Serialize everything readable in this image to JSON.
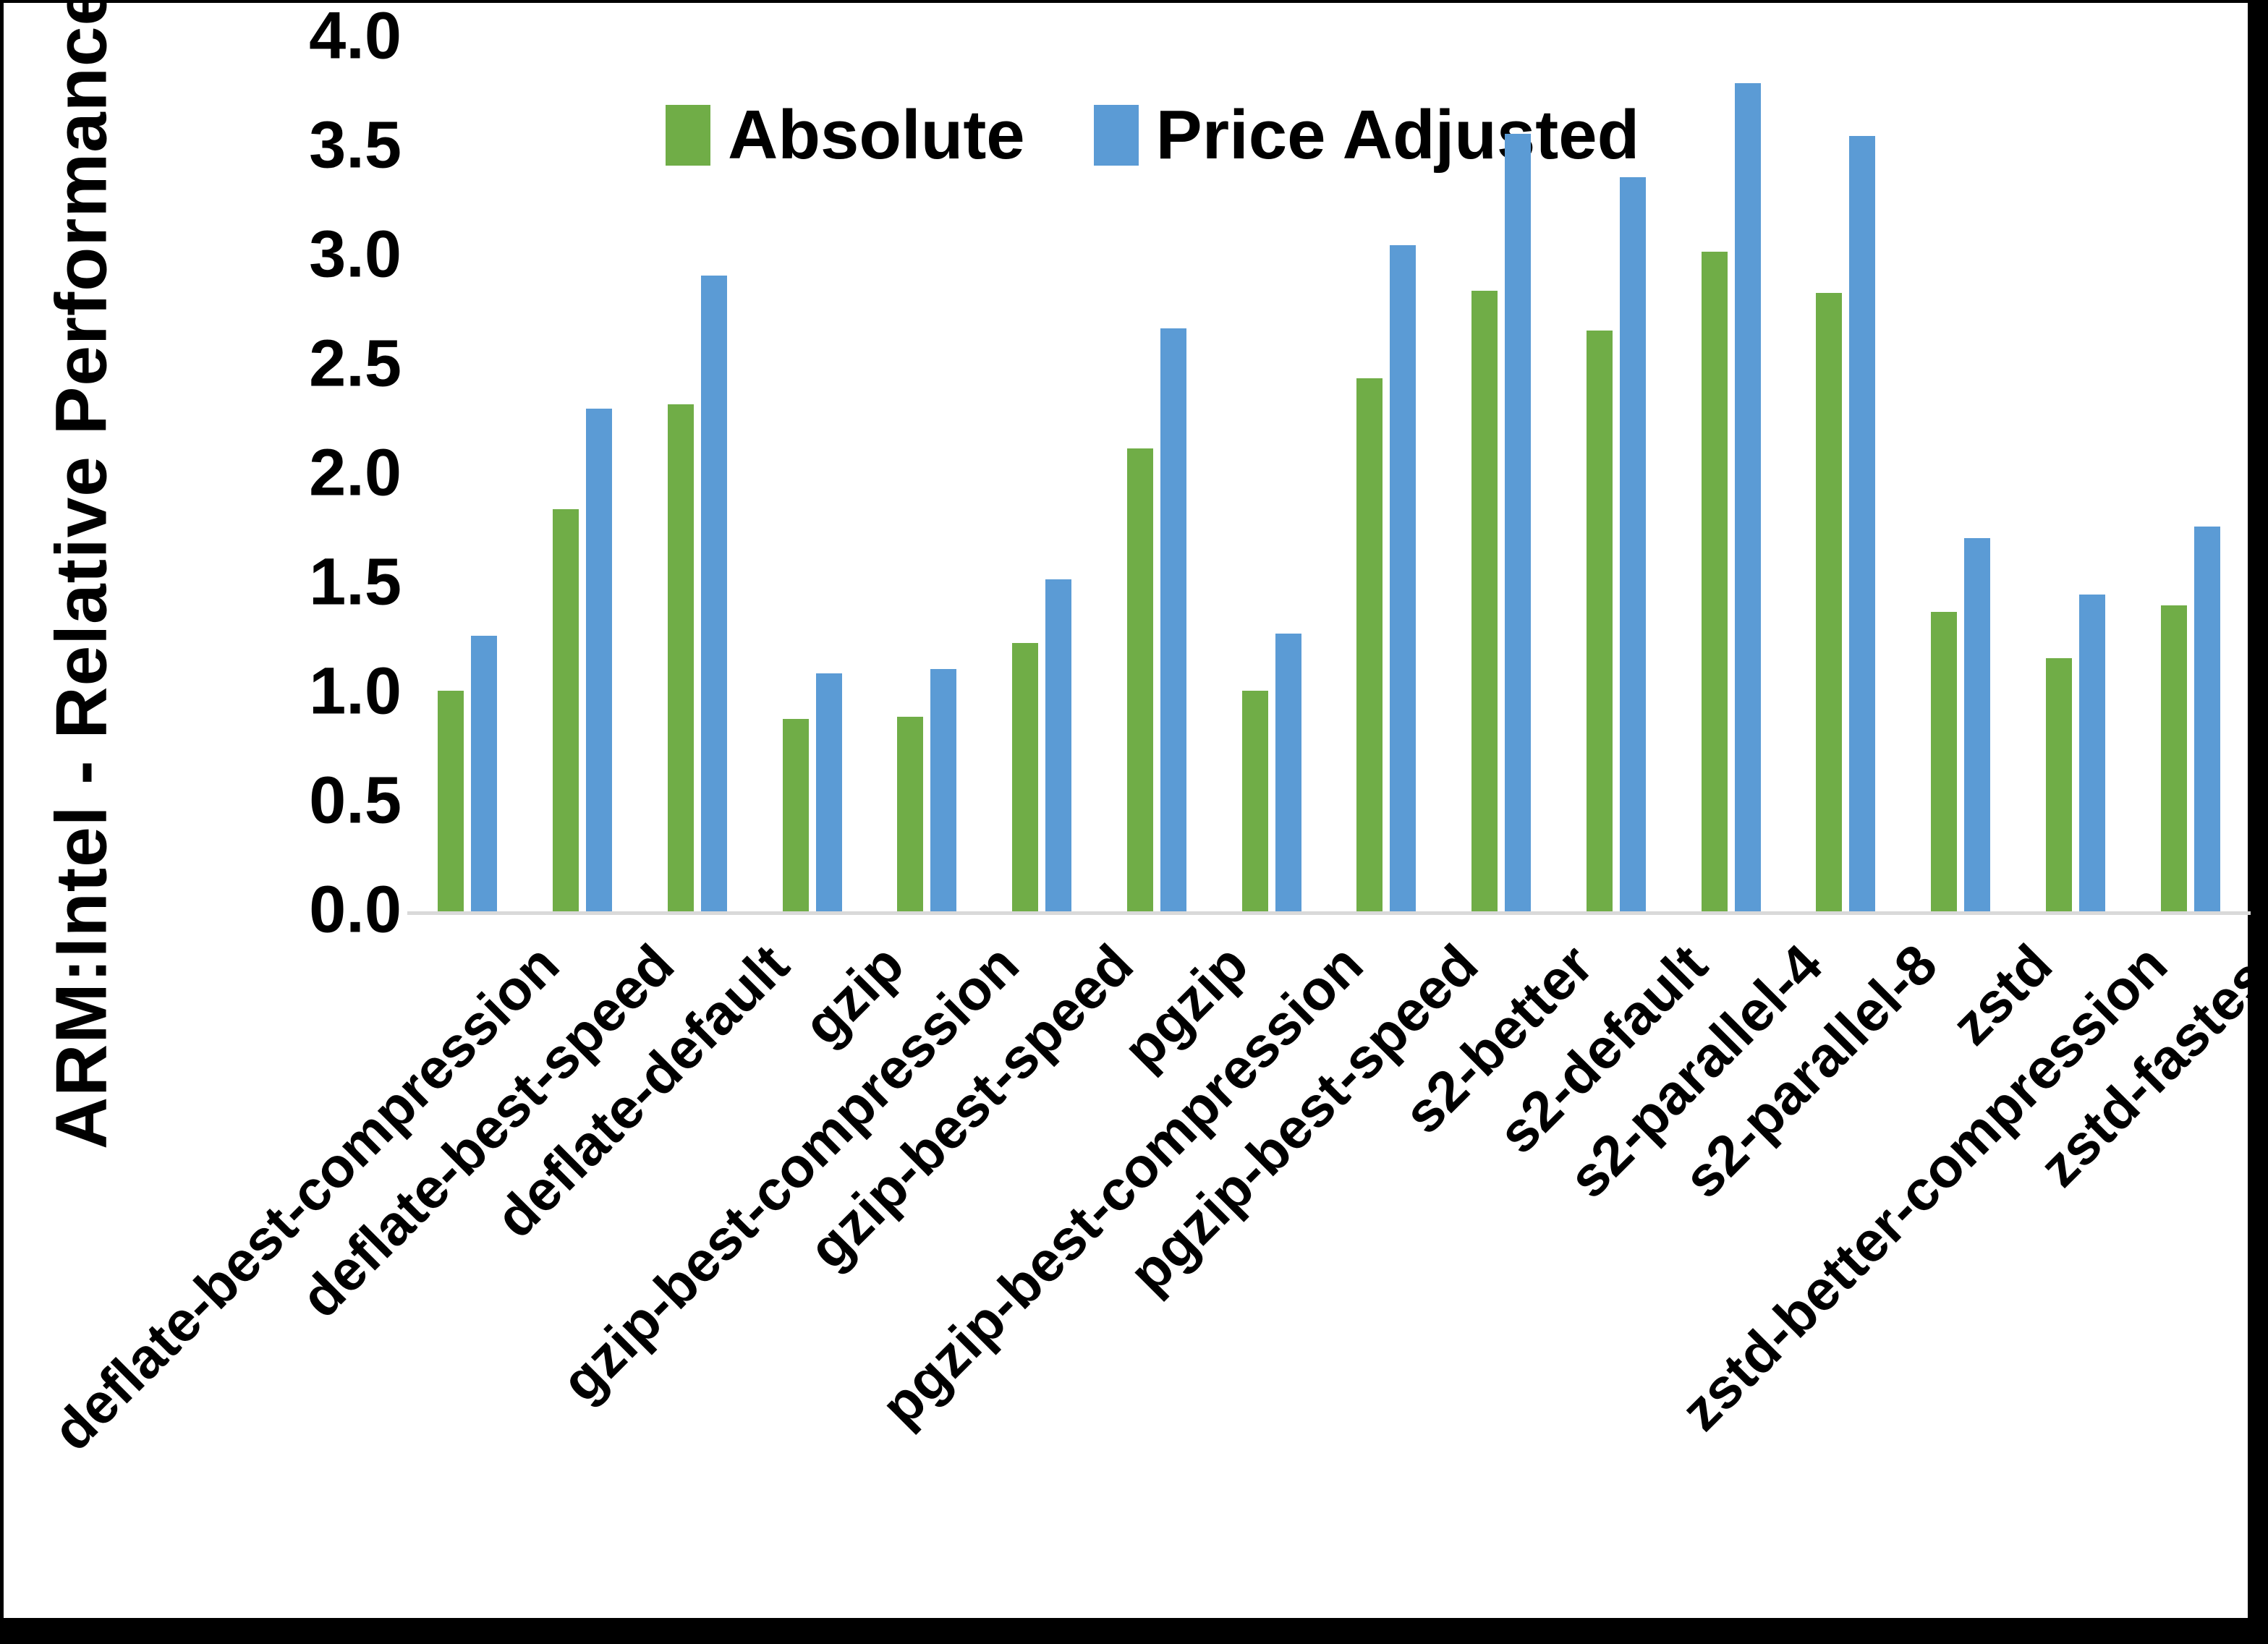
{
  "frame": {
    "border_color": "#000000",
    "background": "#ffffff"
  },
  "chart_data": {
    "type": "bar",
    "title": "",
    "xlabel": "",
    "ylabel": "ARM:Intel - Relative Performance",
    "ylim": [
      0.0,
      4.0
    ],
    "ytick_step": 0.5,
    "ytick_labels": [
      "0.0",
      "0.5",
      "1.0",
      "1.5",
      "2.0",
      "2.5",
      "3.0",
      "3.5",
      "4.0"
    ],
    "grid": "off",
    "legend_position": "top-center",
    "axis_line_color": "#d9d9d9",
    "categories": [
      "deflate-best-compression",
      "deflate-best-speed",
      "deflate-default",
      "gzip",
      "gzip-best-compression",
      "gzip-best-speed",
      "pgzip",
      "pgzip-best-compression",
      "pgzip-best-speed",
      "s2-better",
      "s2-default",
      "s2-parallel-4",
      "s2-parallel-8",
      "zstd",
      "zstd-better-compression",
      "zstd-fastest"
    ],
    "series": [
      {
        "name": "Absolute",
        "color": "#70AD47",
        "values": [
          1.01,
          1.84,
          2.32,
          0.88,
          0.89,
          1.23,
          2.12,
          1.01,
          2.44,
          2.84,
          2.66,
          3.02,
          2.83,
          1.37,
          1.16,
          1.4
        ]
      },
      {
        "name": "Price Adjusted",
        "color": "#5B9BD5",
        "values": [
          1.26,
          2.3,
          2.91,
          1.09,
          1.11,
          1.52,
          2.67,
          1.27,
          3.05,
          3.56,
          3.36,
          3.79,
          3.55,
          1.71,
          1.45,
          1.76
        ]
      }
    ]
  }
}
